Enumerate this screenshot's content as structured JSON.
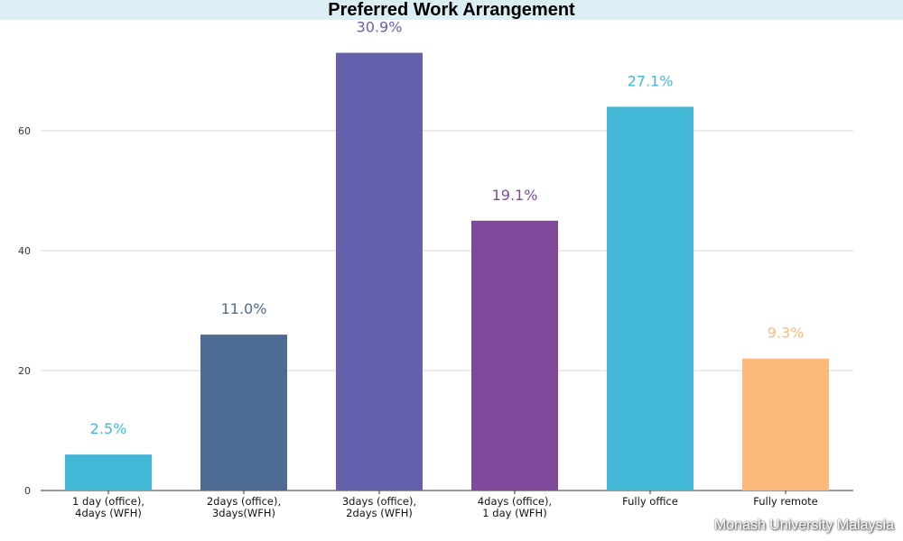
{
  "chart_data": {
    "type": "bar",
    "title": "Preferred Work Arrangement",
    "categories": [
      [
        "1 day (office),",
        "4days (WFH)"
      ],
      [
        "2days (office),",
        "3days(WFH)"
      ],
      [
        "3days (office),",
        "2days (WFH)"
      ],
      [
        "4days (office),",
        "1 day (WFH)"
      ],
      [
        "Fully office"
      ],
      [
        "Fully remote"
      ]
    ],
    "values": [
      6,
      26,
      73,
      45,
      64,
      22
    ],
    "data_labels": [
      "2.5%",
      "11.0%",
      "30.9%",
      "19.1%",
      "27.1%",
      "9.3%"
    ],
    "colors": [
      "#42b8d6",
      "#4e6b93",
      "#6560ab",
      "#80489a",
      "#42b8d6",
      "#fdb97b"
    ],
    "ylim": [
      0,
      80
    ],
    "yticks": [
      0,
      20,
      40,
      60
    ],
    "grid": true,
    "xlabel": "",
    "ylabel": ""
  },
  "watermark": "Monash University Malaysia"
}
